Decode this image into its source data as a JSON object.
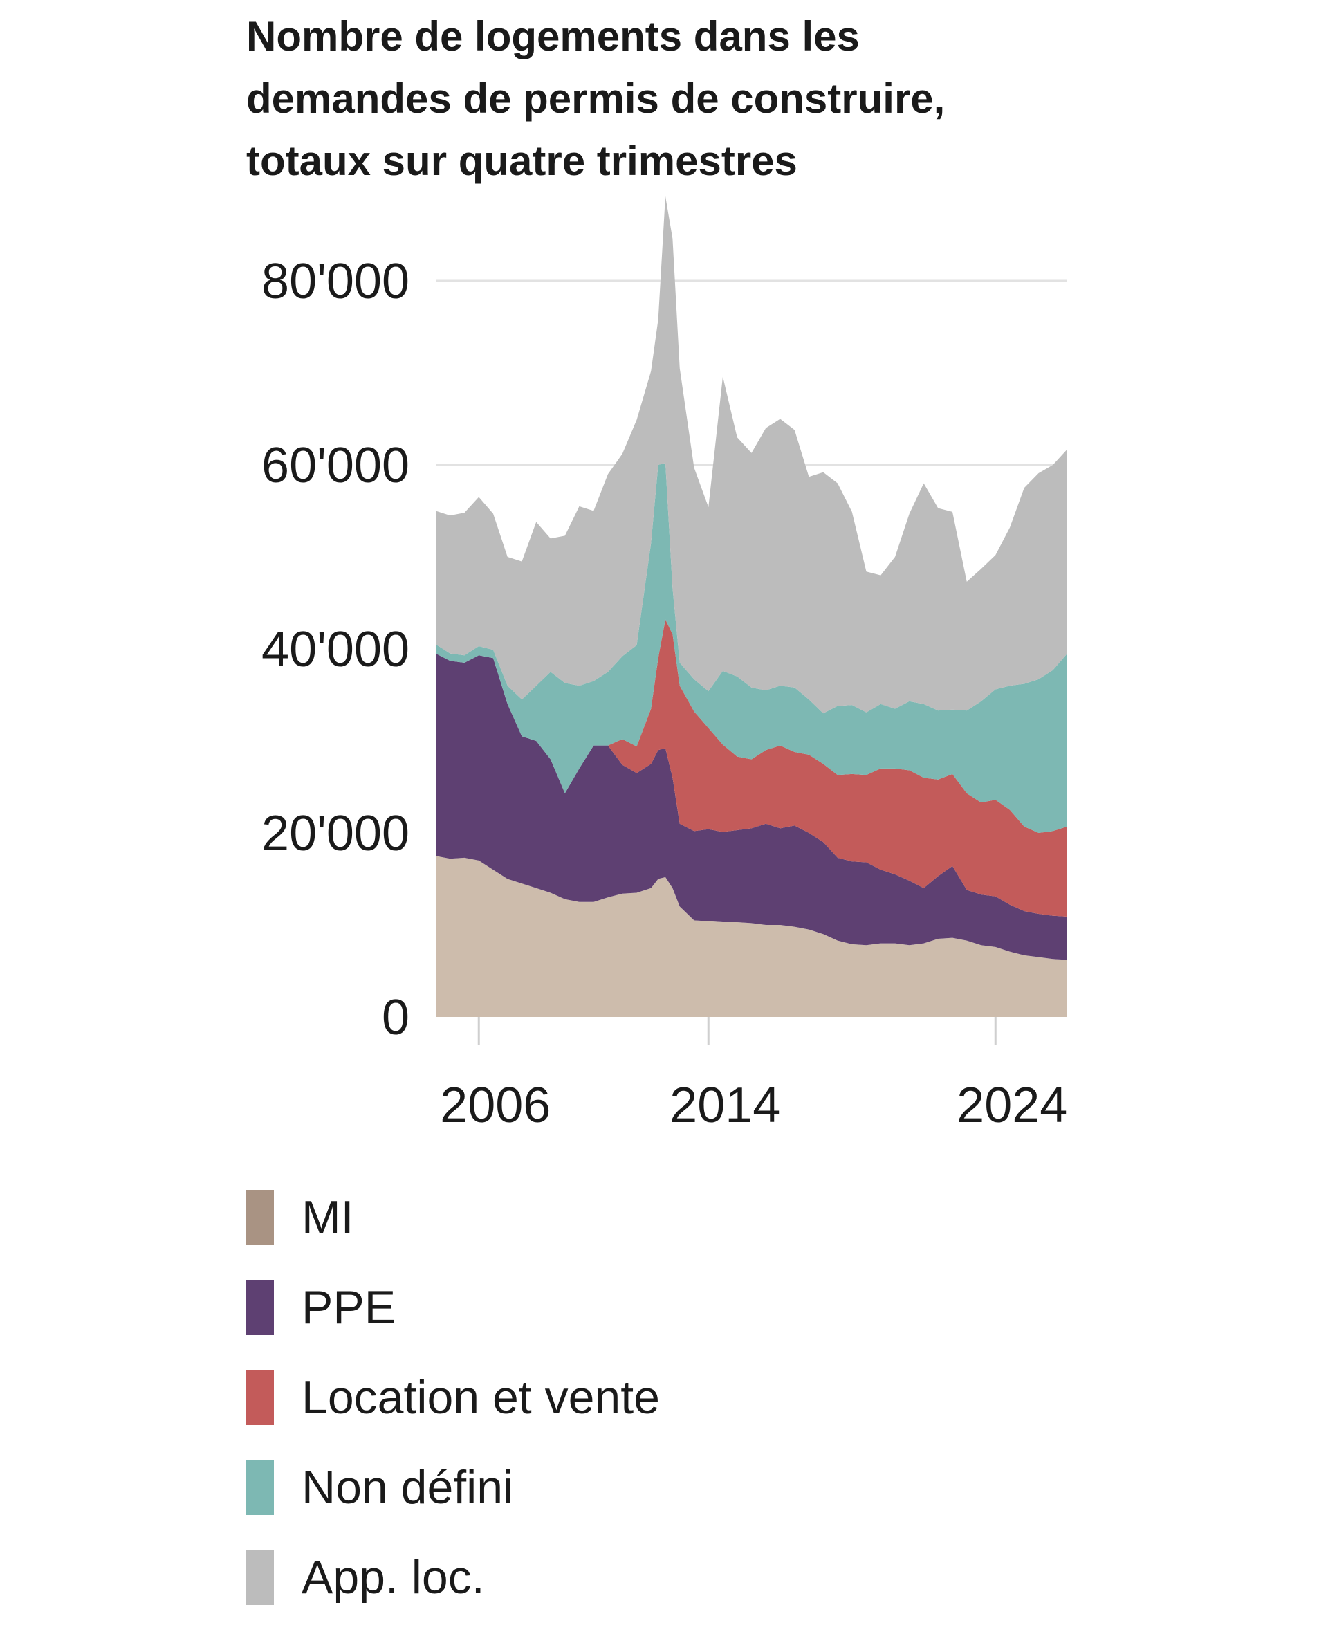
{
  "chart_data": {
    "type": "area",
    "stacked": true,
    "title_lines": [
      "Nombre de logements dans les",
      "demandes de permis de construire,",
      "totaux sur quatre trimestres"
    ],
    "y_ticks": [
      0,
      20000,
      40000,
      60000,
      80000
    ],
    "y_tick_labels": [
      "0",
      "20'000",
      "40'000",
      "60'000",
      "80'000"
    ],
    "ylim": [
      0,
      80000
    ],
    "xlim": [
      2004.5,
      2026.5
    ],
    "x_ticks": [
      2006,
      2014,
      2024
    ],
    "x_tick_labels": [
      "2006",
      "2014",
      "2024"
    ],
    "grid": true,
    "legend_position": "bottom",
    "x": [
      2004.5,
      2005.0,
      2005.5,
      2006.0,
      2006.5,
      2007.0,
      2007.5,
      2008.0,
      2008.5,
      2009.0,
      2009.5,
      2010.0,
      2010.5,
      2011.0,
      2011.5,
      2012.0,
      2012.25,
      2012.5,
      2012.75,
      2013.0,
      2013.5,
      2014.0,
      2014.5,
      2015.0,
      2015.5,
      2016.0,
      2016.5,
      2017.0,
      2017.5,
      2018.0,
      2018.5,
      2019.0,
      2019.5,
      2020.0,
      2020.5,
      2021.0,
      2021.5,
      2022.0,
      2022.5,
      2023.0,
      2023.5,
      2024.0,
      2024.5,
      2025.0,
      2025.5,
      2026.0,
      2026.5
    ],
    "series": [
      {
        "name": "MI",
        "color": "#cdbcac",
        "values": [
          17500,
          17200,
          17300,
          17000,
          16000,
          15000,
          14500,
          14000,
          13500,
          12800,
          12500,
          12500,
          13000,
          13400,
          13500,
          14000,
          15000,
          15200,
          14000,
          12000,
          10500,
          10400,
          10300,
          10300,
          10200,
          10000,
          10000,
          9800,
          9500,
          9000,
          8300,
          7900,
          7800,
          8000,
          8000,
          7800,
          8000,
          8500,
          8600,
          8300,
          7800,
          7600,
          7100,
          6700,
          6500,
          6300,
          6200
        ]
      },
      {
        "name": "PPE",
        "color": "#5e4072",
        "values": [
          22000,
          21500,
          21200,
          22300,
          23000,
          19000,
          16000,
          16000,
          14500,
          11500,
          14500,
          17000,
          16500,
          14000,
          13000,
          13500,
          14000,
          14000,
          12000,
          9000,
          9700,
          10000,
          9800,
          10000,
          10300,
          11000,
          10500,
          11000,
          10500,
          10000,
          9000,
          9000,
          9000,
          8000,
          7500,
          7000,
          6000,
          6800,
          7800,
          5500,
          5500,
          5500,
          5100,
          4800,
          4700,
          4700,
          4700
        ]
      },
      {
        "name": "Location et vente",
        "color": "#c35b5a",
        "values": [
          0,
          0,
          0,
          0,
          0,
          0,
          0,
          0,
          0,
          0,
          0,
          0,
          0,
          2800,
          2900,
          6000,
          10000,
          14000,
          15600,
          15000,
          13000,
          11000,
          9500,
          8000,
          7500,
          8000,
          9000,
          8000,
          8500,
          8500,
          9000,
          9500,
          9500,
          11000,
          11500,
          12000,
          12000,
          10500,
          10000,
          10500,
          10000,
          10500,
          10300,
          9200,
          8800,
          9200,
          9800
        ]
      },
      {
        "name": "Non défini",
        "color": "#7db8b3",
        "values": [
          1000,
          800,
          800,
          1000,
          900,
          2000,
          4000,
          6000,
          9500,
          12000,
          9000,
          7000,
          8000,
          9000,
          11000,
          18000,
          21000,
          17000,
          5000,
          2500,
          3500,
          4000,
          8000,
          8700,
          7800,
          6500,
          6500,
          7000,
          6000,
          5500,
          7500,
          7500,
          6800,
          7000,
          6500,
          7500,
          8000,
          7500,
          7000,
          9000,
          11000,
          12000,
          13500,
          15500,
          16700,
          17500,
          18800
        ]
      },
      {
        "name": "App. loc.",
        "color": "#bcbcbc",
        "values": [
          14500,
          15000,
          15500,
          16200,
          14800,
          14000,
          15000,
          17800,
          14500,
          16000,
          19500,
          18500,
          21500,
          22000,
          24500,
          18700,
          15800,
          29000,
          38000,
          32000,
          23000,
          20000,
          32000,
          26000,
          25500,
          28500,
          29000,
          28000,
          24200,
          26200,
          24200,
          21000,
          15300,
          14000,
          16500,
          20400,
          24000,
          22000,
          21500,
          14000,
          14400,
          14600,
          17200,
          21300,
          22400,
          22300,
          22200
        ]
      }
    ]
  }
}
